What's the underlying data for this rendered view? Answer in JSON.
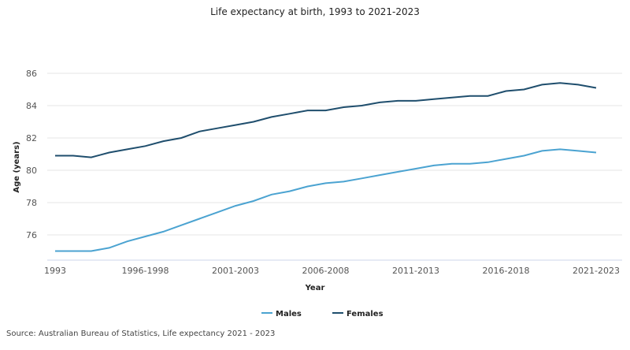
{
  "chart_data": {
    "type": "line",
    "title": "Life expectancy at birth, 1993 to 2021-2023",
    "xlabel": "Year",
    "ylabel": "Age (years)",
    "ylim": [
      74.4,
      86
    ],
    "yticks": [
      76,
      78,
      80,
      82,
      84,
      86
    ],
    "grid": true,
    "legend": "bottom",
    "categories": [
      "1993",
      "1994",
      "1995",
      "1996",
      "1997",
      "1996-1998",
      "1997-1999",
      "1998-2000",
      "1999-2001",
      "2000-2002",
      "2001-2003",
      "2002-2004",
      "2003-2005",
      "2004-2006",
      "2005-2007",
      "2006-2008",
      "2007-2009",
      "2008-2010",
      "2009-2011",
      "2010-2012",
      "2011-2013",
      "2012-2014",
      "2013-2015",
      "2014-2016",
      "2015-2017",
      "2016-2018",
      "2017-2019",
      "2018-2020",
      "2019-2021",
      "2020-2022",
      "2021-2023"
    ],
    "xtick_labels": [
      "1993",
      "1996-1998",
      "2001-2003",
      "2006-2008",
      "2011-2013",
      "2016-2018",
      "2021-2023"
    ],
    "series": [
      {
        "name": "Males",
        "color": "#4ba3d1",
        "values": [
          75.0,
          75.0,
          75.0,
          75.2,
          75.6,
          75.9,
          76.2,
          76.6,
          77.0,
          77.4,
          77.8,
          78.1,
          78.5,
          78.7,
          79.0,
          79.2,
          79.3,
          79.5,
          79.7,
          79.9,
          80.1,
          80.3,
          80.4,
          80.4,
          80.5,
          80.7,
          80.9,
          81.2,
          81.3,
          81.2,
          81.1
        ]
      },
      {
        "name": "Females",
        "color": "#1f4e6d",
        "values": [
          80.9,
          80.9,
          80.8,
          81.1,
          81.3,
          81.5,
          81.8,
          82.0,
          82.4,
          82.6,
          82.8,
          83.0,
          83.3,
          83.5,
          83.7,
          83.7,
          83.9,
          84.0,
          84.2,
          84.3,
          84.3,
          84.4,
          84.5,
          84.6,
          84.6,
          84.9,
          85.0,
          85.3,
          85.4,
          85.3,
          85.1
        ]
      }
    ]
  },
  "source": "Source: Australian Bureau of Statistics, Life expectancy 2021 - 2023"
}
